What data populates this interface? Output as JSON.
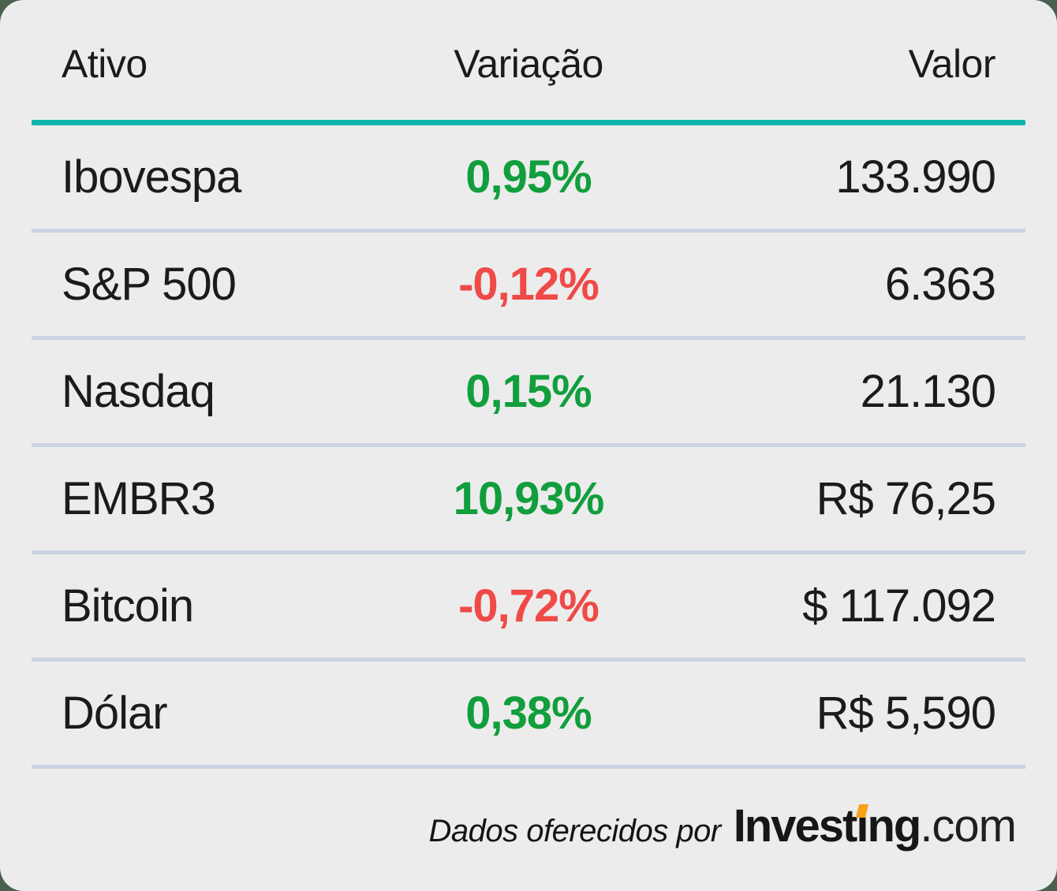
{
  "colors": {
    "page_background": "#4c604f",
    "card_background": "#ececec",
    "positive": "#119e3d",
    "negative": "#ef4a47",
    "teal_rule": "#0fb5ac",
    "divider": "#ccd3e2",
    "accent_orange": "#f8a11b"
  },
  "table": {
    "headers": [
      {
        "label": "Ativo"
      },
      {
        "label": "Variação"
      },
      {
        "label": "Valor"
      }
    ],
    "rows": [
      {
        "ativo": "Ibovespa",
        "variacao": "0,95%",
        "direction": "up",
        "valor": "133.990"
      },
      {
        "ativo": "S&P 500",
        "variacao": "-0,12%",
        "direction": "down",
        "valor": "6.363"
      },
      {
        "ativo": "Nasdaq",
        "variacao": "0,15%",
        "direction": "up",
        "valor": "21.130"
      },
      {
        "ativo": "EMBR3",
        "variacao": "10,93%",
        "direction": "up",
        "valor": "R$ 76,25"
      },
      {
        "ativo": "Bitcoin",
        "variacao": "-0,72%",
        "direction": "down",
        "valor": "$ 117.092"
      },
      {
        "ativo": "Dólar",
        "variacao": "0,38%",
        "direction": "up",
        "valor": "R$ 5,590"
      }
    ]
  },
  "footer": {
    "attribution": "Dados oferecidos por",
    "logo": {
      "part1": "Invest",
      "dotless_i": "ı",
      "part2": "ng",
      "suffix": ".com"
    }
  },
  "chart_data": {
    "type": "table",
    "columns": [
      "Ativo",
      "Variação",
      "Valor"
    ],
    "rows": [
      [
        "Ibovespa",
        "0,95%",
        "133.990"
      ],
      [
        "S&P 500",
        "-0,12%",
        "6.363"
      ],
      [
        "Nasdaq",
        "0,15%",
        "21.130"
      ],
      [
        "EMBR3",
        "10,93%",
        "R$ 76,25"
      ],
      [
        "Bitcoin",
        "-0,72%",
        "$ 117.092"
      ],
      [
        "Dólar",
        "0,38%",
        "R$ 5,590"
      ]
    ],
    "variation_percent_numeric": [
      0.95,
      -0.12,
      0.15,
      10.93,
      -0.72,
      0.38
    ],
    "positive_color": "#119e3d",
    "negative_color": "#ef4a47"
  }
}
